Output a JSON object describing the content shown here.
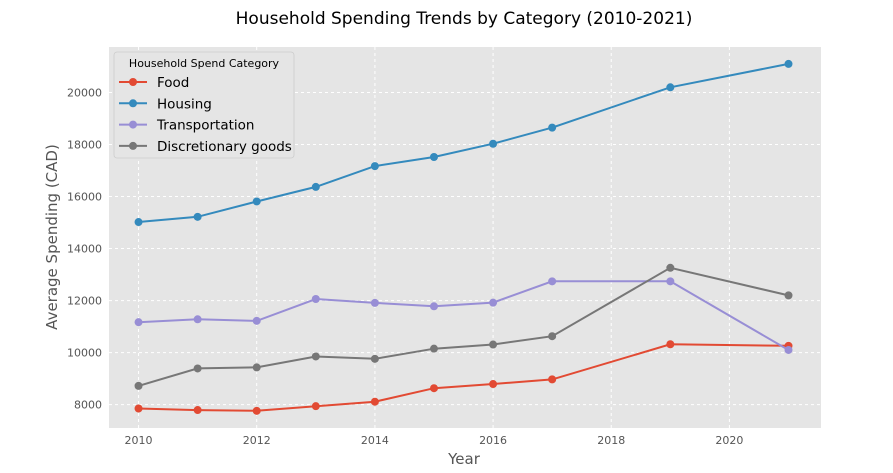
{
  "chart_data": {
    "type": "line",
    "title": "Household Spending Trends by Category (2010-2021)",
    "xlabel": "Year",
    "ylabel": "Average Spending (CAD)",
    "legend_title": "Household Spend Category",
    "legend_position": "upper-left",
    "grid": true,
    "x": [
      2010,
      2011,
      2012,
      2013,
      2014,
      2015,
      2016,
      2017,
      2019,
      2021
    ],
    "x_ticks": [
      2010,
      2012,
      2014,
      2016,
      2018,
      2020
    ],
    "y_ticks": [
      8000,
      10000,
      12000,
      14000,
      16000,
      18000,
      20000
    ],
    "xlim": [
      2009.5,
      2021.55
    ],
    "ylim": [
      7100,
      21750
    ],
    "series": [
      {
        "name": "Food",
        "color": "#E24A33",
        "values": [
          7850,
          7790,
          7760,
          7940,
          8110,
          8630,
          8790,
          8970,
          10320,
          10260
        ]
      },
      {
        "name": "Housing",
        "color": "#348ABD",
        "values": [
          15020,
          15220,
          15810,
          16370,
          17170,
          17520,
          18030,
          18650,
          20200,
          21100
        ]
      },
      {
        "name": "Transportation",
        "color": "#988ED5",
        "values": [
          11170,
          11280,
          11220,
          12060,
          11910,
          11780,
          11920,
          12740,
          12740,
          10100
        ]
      },
      {
        "name": "Discretionary goods",
        "color": "#777777",
        "values": [
          8720,
          9390,
          9430,
          9850,
          9760,
          10150,
          10310,
          10630,
          13260,
          12200
        ]
      }
    ]
  }
}
